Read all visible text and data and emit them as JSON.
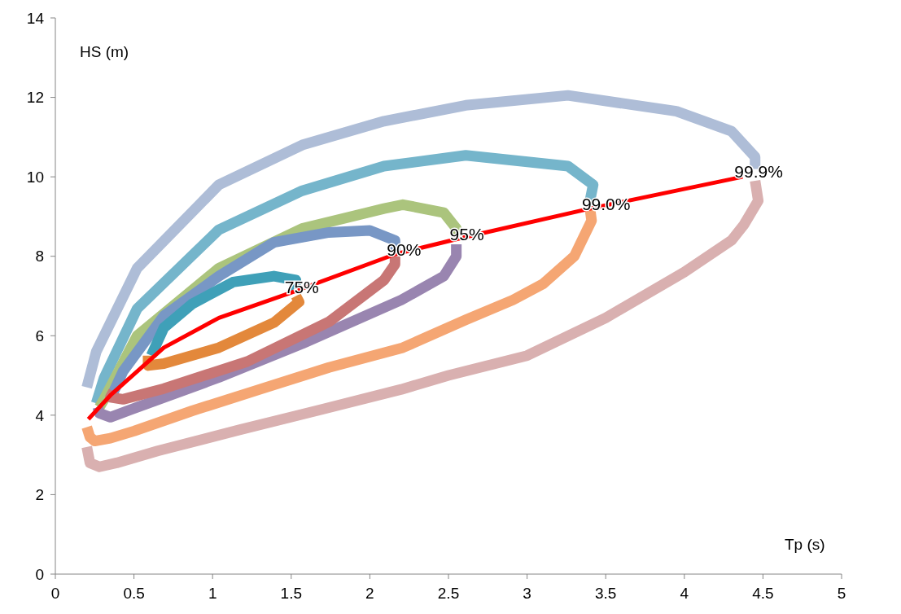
{
  "chart_data": {
    "type": "line",
    "xlabel": "Tp (s)",
    "ylabel": "HS (m)",
    "xlim": [
      0,
      5
    ],
    "ylim": [
      0,
      14
    ],
    "xticks": [
      0,
      0.5,
      1,
      1.5,
      2,
      2.5,
      3,
      3.5,
      4,
      4.5,
      5
    ],
    "yticks": [
      0,
      2,
      4,
      6,
      8,
      10,
      12,
      14
    ],
    "grid": false,
    "marker": "none",
    "line_style": "solid",
    "series": [
      {
        "color": "#aebdd7",
        "x": [
          0.2,
          0.26,
          0.52,
          1.04,
          1.57,
          2.09,
          2.61,
          3.26,
          3.95,
          4.3,
          4.45,
          4.45
        ],
        "values": [
          4.7,
          5.6,
          7.7,
          9.8,
          10.8,
          11.4,
          11.8,
          12.05,
          11.65,
          11.15,
          10.5,
          10.2
        ]
      },
      {
        "color": "#d9b0b0",
        "x": [
          4.45,
          4.47,
          4.38,
          4.3,
          4.0,
          3.5,
          3.0,
          2.5,
          2.2,
          1.7,
          1.17,
          0.65,
          0.39,
          0.28,
          0.22,
          0.2
        ],
        "values": [
          9.9,
          9.4,
          8.8,
          8.4,
          7.6,
          6.45,
          5.5,
          5.0,
          4.65,
          4.15,
          3.63,
          3.1,
          2.8,
          2.7,
          2.8,
          3.2
        ]
      },
      {
        "color": "#75b5cb",
        "x": [
          0.26,
          0.31,
          0.52,
          1.04,
          1.57,
          2.09,
          2.61,
          3.26,
          3.42,
          3.4
        ],
        "values": [
          4.3,
          4.94,
          6.68,
          8.67,
          9.65,
          10.27,
          10.54,
          10.27,
          9.8,
          9.4
        ]
      },
      {
        "color": "#f5a673",
        "x": [
          3.4,
          3.41,
          3.3,
          3.1,
          2.91,
          2.61,
          2.21,
          1.74,
          1.3,
          0.87,
          0.5,
          0.35,
          0.25,
          0.22,
          0.2
        ],
        "values": [
          9.2,
          8.9,
          8.0,
          7.3,
          6.9,
          6.4,
          5.7,
          5.2,
          4.65,
          4.11,
          3.6,
          3.42,
          3.35,
          3.45,
          3.7
        ]
      },
      {
        "color": "#abc47d",
        "x": [
          0.28,
          0.31,
          0.52,
          1.04,
          1.57,
          2.09,
          2.21,
          2.47,
          2.55,
          2.55
        ],
        "values": [
          4.2,
          4.4,
          6.0,
          7.7,
          8.7,
          9.2,
          9.3,
          9.1,
          8.7,
          8.5
        ]
      },
      {
        "color": "#9985b0",
        "x": [
          2.55,
          2.55,
          2.47,
          2.2,
          1.57,
          1.04,
          0.52,
          0.35,
          0.28,
          0.27
        ],
        "values": [
          8.3,
          8.0,
          7.5,
          6.9,
          5.8,
          4.95,
          4.2,
          3.95,
          4.05,
          4.2
        ]
      },
      {
        "color": "#7897c5",
        "x": [
          0.36,
          0.43,
          0.69,
          1.04,
          1.39,
          1.74,
          2.0,
          2.16,
          2.16
        ],
        "values": [
          4.5,
          5.1,
          6.5,
          7.5,
          8.35,
          8.6,
          8.65,
          8.4,
          8.1
        ]
      },
      {
        "color": "#c87675",
        "x": [
          2.16,
          2.16,
          2.09,
          1.74,
          1.22,
          0.69,
          0.43,
          0.35,
          0.37
        ],
        "values": [
          8.0,
          7.8,
          7.4,
          6.35,
          5.35,
          4.67,
          4.4,
          4.45,
          4.6
        ]
      },
      {
        "color": "#3fa0b8",
        "x": [
          0.61,
          0.69,
          0.87,
          1.13,
          1.39,
          1.53,
          1.52
        ],
        "values": [
          5.5,
          6.2,
          6.8,
          7.35,
          7.5,
          7.4,
          7.1
        ]
      },
      {
        "color": "#e3883b",
        "x": [
          1.53,
          1.55,
          1.39,
          1.04,
          0.69,
          0.59,
          0.59
        ],
        "values": [
          7.0,
          6.85,
          6.33,
          5.7,
          5.3,
          5.25,
          5.5
        ]
      },
      {
        "color": "#ff0000",
        "x": [
          0.21,
          0.35,
          0.69,
          1.04,
          1.51,
          2.16,
          2.56,
          3.4,
          4.37
        ],
        "values": [
          3.9,
          4.5,
          5.7,
          6.45,
          7.1,
          8.05,
          8.44,
          9.2,
          10.0
        ]
      }
    ],
    "annotations": [
      {
        "text": "75%",
        "x": 1.51,
        "y": 7.1
      },
      {
        "text": "90%",
        "x": 2.16,
        "y": 8.05
      },
      {
        "text": "95%",
        "x": 2.56,
        "y": 8.44
      },
      {
        "text": "99.0%",
        "x": 3.4,
        "y": 9.2
      },
      {
        "text": "99.9%",
        "x": 4.37,
        "y": 10.0
      }
    ]
  }
}
